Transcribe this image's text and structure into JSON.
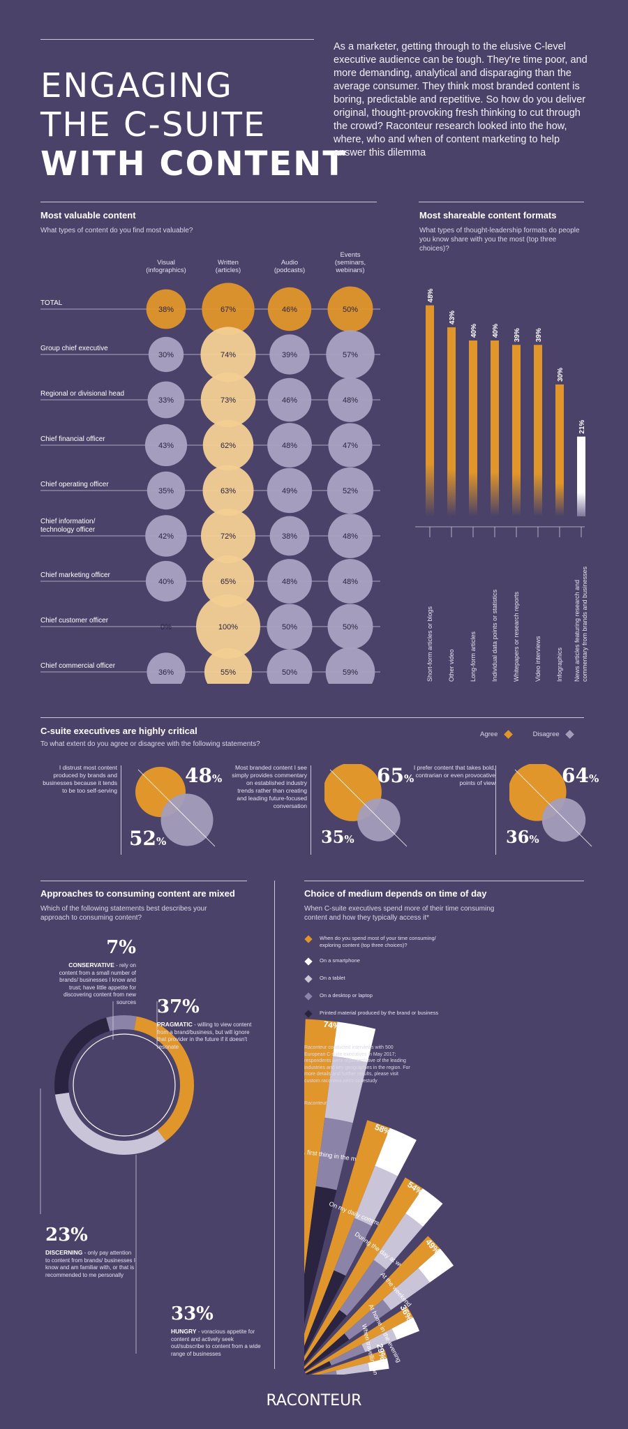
{
  "header": {
    "title_line1": "ENGAGING",
    "title_line2": "THE C-SUITE",
    "title_line3": "WITH CONTENT",
    "intro": "As a marketer, getting through to the elusive C-level executive audience can be tough. They're time poor, and more demanding, analytical and disparaging than the average consumer. They think most branded content is boring, predictable and repetitive. So how do you deliver original, thought-provoking fresh thinking to cut through the crowd? Raconteur research looked into the how, where, who and when of content marketing to help answer this dilemma"
  },
  "valuable": {
    "title": "Most valuable content",
    "question": "What types of content do you find most valuable?",
    "columns": [
      "Visual (infographics)",
      "Written (articles)",
      "Audio (podcasts)",
      "Events (seminars, webinars)"
    ],
    "column_lines": [
      [
        "Visual",
        "(infographics)"
      ],
      [
        "Written",
        "(articles)"
      ],
      [
        "Audio",
        "(podcasts)"
      ],
      [
        "Events",
        "(seminars,",
        "webinars)"
      ]
    ],
    "rows": [
      {
        "label": [
          "TOTAL"
        ],
        "values": [
          38,
          67,
          46,
          50
        ]
      },
      {
        "label": [
          "Group chief executive"
        ],
        "values": [
          30,
          74,
          39,
          57
        ]
      },
      {
        "label": [
          "Regional or divisional head"
        ],
        "values": [
          33,
          73,
          46,
          48
        ]
      },
      {
        "label": [
          "Chief financial officer"
        ],
        "values": [
          43,
          62,
          48,
          47
        ]
      },
      {
        "label": [
          "Chief operating officer"
        ],
        "values": [
          35,
          63,
          49,
          52
        ]
      },
      {
        "label": [
          "Chief information/",
          "technology officer"
        ],
        "values": [
          42,
          72,
          38,
          48
        ]
      },
      {
        "label": [
          "Chief marketing officer"
        ],
        "values": [
          40,
          65,
          48,
          48
        ]
      },
      {
        "label": [
          "Chief customer officer"
        ],
        "values": [
          0,
          100,
          50,
          50
        ]
      },
      {
        "label": [
          "Chief commercial officer"
        ],
        "values": [
          36,
          55,
          50,
          59
        ]
      }
    ]
  },
  "shareable": {
    "title": "Most shareable content formats",
    "question": "What types of thought-leadership formats do people you know share with you the most (top three choices)?"
  },
  "critical": {
    "title": "C-suite executives are highly critical",
    "question": "To what extent do you agree or disagree with the following statements?",
    "agree_label": "Agree",
    "disagree_label": "Disagree",
    "items": [
      {
        "statement": "I distrust most content produced by brands and businesses because it tends to be too self-serving",
        "agree": "48",
        "disagree": "52"
      },
      {
        "statement": "Most branded content I see simply provides commentary on established industry trends rather than creating and leading future-focused conversation",
        "agree": "65",
        "disagree": "35"
      },
      {
        "statement": "I prefer content that takes bold, contrarian or even provocative points of view",
        "agree": "64",
        "disagree": "36"
      }
    ]
  },
  "approaches": {
    "title": "Approaches to consuming content are mixed",
    "question": "Which of the following statements best describes your approach to consuming content?",
    "segments": [
      {
        "pct": "7%",
        "name": "CONSERVATIVE",
        "desc": "rely on content from a small number of brands/ businesses I know and trust; have little appetite for discovering content from new sources",
        "color": "#8c84a8"
      },
      {
        "pct": "37%",
        "name": "PRAGMATIC",
        "desc": "willing to view content from a brand/business, but will ignore that provider in the future if it doesn't resonate",
        "color": "#e0962a"
      },
      {
        "pct": "23%",
        "name": "DISCERNING",
        "desc": "only pay attention to content from brands/ businesses I know and am familiar with, or that is recommended to me personally",
        "color": "#2a2440"
      },
      {
        "pct": "33%",
        "name": "HUNGRY",
        "desc": "voracious appetite for content and actively seek out/subscribe to content from a wide range of businesses",
        "color": "#c9c4d8"
      }
    ]
  },
  "medium": {
    "title": "Choice of medium depends on time of day",
    "question": "When C-suite executives spend more of their time consuming content and how they typically access it*",
    "legend": [
      {
        "label": "When do you spend most of your time consuming/ exploring content (top three choices)?",
        "color": "#e0962a"
      },
      {
        "label": "On a smartphone",
        "color": "#ffffff"
      },
      {
        "label": "On a tablet",
        "color": "#c9c4d8"
      },
      {
        "label": "On a desktop or laptop",
        "color": "#8c84a8"
      },
      {
        "label": "Printed material produced by the brand or business",
        "color": "#2a2440"
      }
    ],
    "note": "Raconteur conducted interviews with 500 European C-suite executives in May 2017; respondents were representative of the leading industries and key geographies in the region. For more details and further results, please visit custom.raconteur.net/c-suitestudy",
    "note_source": "Raconteur"
  },
  "brand": {
    "logo": "RACONTEUR"
  },
  "chart_data": [
    {
      "type": "bar",
      "title": "Most shareable content formats",
      "categories": [
        "Short-form articles or blogs",
        "Other video",
        "Long-form articles",
        "Individual data points or statistics",
        "Whitepapers or research reports",
        "Video interviews",
        "Infographics",
        "News articles featuring research and commentary from brands and businesses"
      ],
      "values": [
        48,
        43,
        40,
        40,
        39,
        39,
        30,
        21
      ],
      "value_labels": [
        "48%",
        "43%",
        "40%",
        "40%",
        "39%",
        "39%",
        "30%",
        "21%"
      ],
      "ylim": [
        0,
        50
      ]
    },
    {
      "type": "bar",
      "title": "Choice of medium depends on time of day",
      "categories": [
        "Before work, first thing in the morning",
        "On my daily commute",
        "During the day at work",
        "At the weekend",
        "At home in the evening",
        "When travelling on business"
      ],
      "values": [
        74,
        58,
        54,
        49,
        36,
        29
      ],
      "value_labels": [
        "74%",
        "58%",
        "54%",
        "49%",
        "36%",
        "29%"
      ]
    }
  ]
}
